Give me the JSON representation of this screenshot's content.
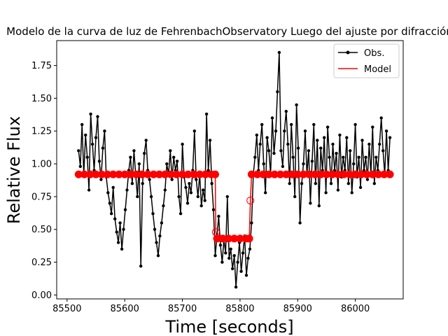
{
  "chart_data": {
    "type": "line",
    "title": "Modelo de la curva de luz de FehrenbachObservatory Luego del ajuste por difracción",
    "xlabel": "Time [seconds]",
    "ylabel": "Relative Flux",
    "xlim": [
      85482,
      86083
    ],
    "ylim": [
      -0.03,
      1.94
    ],
    "x_ticks": [
      85500,
      85600,
      85700,
      85800,
      85900,
      86000
    ],
    "x_tick_labels": [
      "85500",
      "85600",
      "85700",
      "85800",
      "85900",
      "86000"
    ],
    "y_ticks": [
      0.0,
      0.25,
      0.5,
      0.75,
      1.0,
      1.25,
      1.5,
      1.75
    ],
    "y_tick_labels": [
      "0.00",
      "0.25",
      "0.50",
      "0.75",
      "1.00",
      "1.25",
      "1.50",
      "1.75"
    ],
    "grid": false,
    "legend_position": "top-right",
    "series": [
      {
        "name": "Obs.",
        "color": "#000000",
        "style": "line-with-dots",
        "x": [
          85520,
          85523,
          85526,
          85529,
          85532,
          85535,
          85538,
          85541,
          85544,
          85547,
          85550,
          85553,
          85556,
          85559,
          85562,
          85565,
          85568,
          85571,
          85574,
          85577,
          85580,
          85583,
          85586,
          85589,
          85592,
          85595,
          85598,
          85601,
          85604,
          85607,
          85610,
          85613,
          85616,
          85619,
          85622,
          85625,
          85628,
          85631,
          85634,
          85637,
          85640,
          85643,
          85646,
          85649,
          85652,
          85655,
          85658,
          85661,
          85664,
          85667,
          85670,
          85673,
          85676,
          85679,
          85682,
          85685,
          85688,
          85691,
          85694,
          85697,
          85700,
          85703,
          85706,
          85709,
          85712,
          85715,
          85718,
          85721,
          85724,
          85727,
          85730,
          85733,
          85736,
          85739,
          85742,
          85745,
          85748,
          85751,
          85754,
          85757,
          85760,
          85763,
          85766,
          85769,
          85772,
          85775,
          85778,
          85781,
          85784,
          85787,
          85790,
          85793,
          85796,
          85799,
          85802,
          85805,
          85808,
          85811,
          85814,
          85817,
          85820,
          85823,
          85826,
          85829,
          85832,
          85835,
          85838,
          85841,
          85844,
          85847,
          85850,
          85853,
          85856,
          85859,
          85862,
          85865,
          85868,
          85871,
          85874,
          85877,
          85880,
          85883,
          85886,
          85889,
          85892,
          85895,
          85898,
          85901,
          85904,
          85907,
          85910,
          85913,
          85916,
          85919,
          85922,
          85925,
          85928,
          85931,
          85934,
          85937,
          85940,
          85943,
          85946,
          85949,
          85952,
          85955,
          85958,
          85961,
          85964,
          85967,
          85970,
          85973,
          85976,
          85979,
          85982,
          85985,
          85988,
          85991,
          85994,
          85997,
          86000,
          86003,
          86006,
          86009,
          86012,
          86015,
          86018,
          86021,
          86024,
          86027,
          86030,
          86033,
          86036,
          86039,
          86042,
          86045,
          86048,
          86051,
          86054,
          86057,
          86060
        ],
        "y": [
          1.1,
          0.98,
          1.3,
          0.92,
          1.22,
          1.05,
          0.8,
          1.38,
          1.15,
          0.95,
          1.2,
          1.36,
          1.02,
          0.88,
          1.12,
          1.25,
          0.9,
          0.78,
          0.7,
          0.62,
          0.82,
          0.58,
          0.48,
          0.4,
          0.55,
          0.35,
          0.5,
          0.65,
          0.8,
          0.95,
          1.05,
          0.85,
          1.1,
          0.92,
          0.75,
          1.0,
          0.22,
          0.85,
          1.08,
          1.18,
          0.95,
          0.88,
          0.75,
          0.62,
          0.5,
          0.4,
          0.3,
          0.45,
          0.55,
          0.68,
          0.8,
          1.0,
          0.92,
          1.1,
          0.88,
          1.05,
          0.95,
          1.02,
          0.75,
          0.62,
          1.15,
          0.9,
          0.82,
          0.7,
          0.85,
          0.78,
          0.95,
          1.25,
          0.88,
          0.75,
          0.92,
          0.68,
          0.8,
          0.72,
          1.38,
          0.95,
          1.18,
          0.85,
          0.65,
          0.3,
          0.45,
          0.6,
          0.38,
          0.25,
          0.42,
          0.32,
          0.75,
          0.28,
          0.35,
          0.2,
          0.3,
          0.06,
          0.25,
          0.4,
          0.18,
          0.32,
          0.45,
          0.15,
          0.28,
          0.35,
          0.55,
          0.92,
          1.05,
          1.22,
          0.95,
          1.15,
          1.3,
          1.0,
          0.78,
          1.2,
          1.1,
          0.92,
          1.35,
          1.08,
          1.25,
          1.55,
          1.85,
          1.1,
          0.98,
          1.25,
          1.4,
          1.15,
          0.85,
          1.3,
          1.05,
          0.75,
          1.45,
          1.12,
          0.55,
          0.85,
          1.0,
          1.25,
          0.92,
          1.1,
          0.7,
          1.02,
          1.3,
          0.85,
          1.18,
          0.68,
          1.12,
          0.95,
          1.2,
          0.78,
          1.28,
          1.05,
          0.85,
          1.15,
          0.95,
          1.08,
          0.8,
          1.22,
          0.9,
          1.05,
          0.95,
          1.2,
          0.85,
          1.1,
          0.78,
          1.0,
          1.3,
          0.9,
          1.05,
          0.82,
          1.18,
          0.95,
          1.05,
          0.88,
          1.15,
          0.92,
          1.28,
          0.85,
          1.05,
          0.95,
          1.15,
          1.35,
          1.1,
          0.92,
          1.25,
          0.95,
          1.2
        ]
      },
      {
        "name": "Model",
        "color": "#ff0000",
        "style": "line-with-circle-markers",
        "x": [
          85520,
          85530,
          85540,
          85550,
          85560,
          85570,
          85580,
          85590,
          85600,
          85610,
          85620,
          85630,
          85640,
          85650,
          85660,
          85670,
          85680,
          85690,
          85700,
          85710,
          85720,
          85730,
          85740,
          85750,
          85757,
          85758,
          85760,
          85770,
          85780,
          85790,
          85800,
          85810,
          85816,
          85818,
          85820,
          85830,
          85840,
          85850,
          85860,
          85870,
          85880,
          85890,
          85900,
          85910,
          85920,
          85930,
          85940,
          85950,
          85960,
          85970,
          85980,
          85990,
          86000,
          86010,
          86020,
          86030,
          86040,
          86050,
          86060
        ],
        "y": [
          0.92,
          0.92,
          0.92,
          0.92,
          0.92,
          0.92,
          0.92,
          0.92,
          0.92,
          0.92,
          0.92,
          0.92,
          0.92,
          0.92,
          0.92,
          0.92,
          0.92,
          0.92,
          0.92,
          0.92,
          0.92,
          0.92,
          0.92,
          0.92,
          0.92,
          0.48,
          0.43,
          0.43,
          0.43,
          0.43,
          0.43,
          0.43,
          0.43,
          0.72,
          0.92,
          0.92,
          0.92,
          0.92,
          0.92,
          0.92,
          0.92,
          0.92,
          0.92,
          0.92,
          0.92,
          0.92,
          0.92,
          0.92,
          0.92,
          0.92,
          0.92,
          0.92,
          0.92,
          0.92,
          0.92,
          0.92,
          0.92,
          0.92,
          0.92
        ]
      }
    ]
  }
}
